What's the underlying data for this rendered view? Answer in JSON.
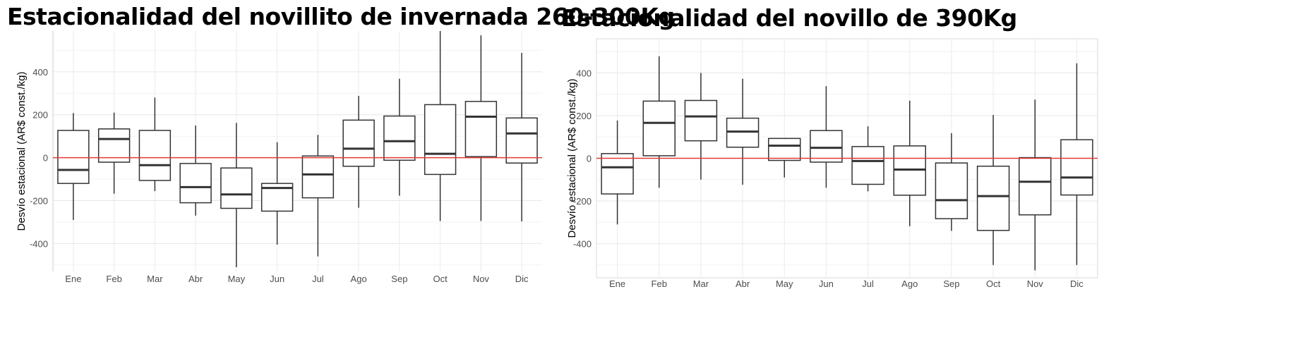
{
  "chart_data": [
    {
      "type": "boxplot",
      "title": "Estacionalidad del novillito de invernada 260-300Kg",
      "xlabel": "",
      "ylabel": "Desvío estacional (AR$ const./kg)",
      "ylim": [
        -530,
        590
      ],
      "yticks": [
        -400,
        -200,
        0,
        200,
        400
      ],
      "reference_line": {
        "y": 0,
        "color": "#e53935"
      },
      "categories": [
        "Ene",
        "Feb",
        "Mar",
        "Abr",
        "May",
        "Jun",
        "Jul",
        "Ago",
        "Sep",
        "Oct",
        "Nov",
        "Dic"
      ],
      "boxes": [
        {
          "min": -290,
          "q1": -120,
          "median": -57,
          "q3": 127,
          "max": 208
        },
        {
          "min": -168,
          "q1": -21,
          "median": 87,
          "q3": 134,
          "max": 210
        },
        {
          "min": -156,
          "q1": -106,
          "median": -35,
          "q3": 127,
          "max": 280
        },
        {
          "min": -270,
          "q1": -210,
          "median": -137,
          "q3": -27,
          "max": 150
        },
        {
          "min": -510,
          "q1": -236,
          "median": -171,
          "q3": -48,
          "max": 162
        },
        {
          "min": -405,
          "q1": -249,
          "median": -141,
          "q3": -120,
          "max": 72
        },
        {
          "min": -460,
          "q1": -187,
          "median": -78,
          "q3": 8,
          "max": 106
        },
        {
          "min": -233,
          "q1": -40,
          "median": 42,
          "q3": 175,
          "max": 288
        },
        {
          "min": -177,
          "q1": -12,
          "median": 77,
          "q3": 194,
          "max": 368
        },
        {
          "min": -295,
          "q1": -78,
          "median": 18,
          "q3": 247,
          "max": 590
        },
        {
          "min": -295,
          "q1": 5,
          "median": 191,
          "q3": 262,
          "max": 570
        },
        {
          "min": -297,
          "q1": -25,
          "median": 113,
          "q3": 185,
          "max": 488
        }
      ]
    },
    {
      "type": "boxplot",
      "title": "Estacionalidad del novillo de 390Kg",
      "xlabel": "",
      "ylabel": "Desvío estacional (AR$ const./kg)",
      "ylim": [
        -560,
        560
      ],
      "yticks": [
        -400,
        -200,
        0,
        200,
        400
      ],
      "reference_line": {
        "y": 0,
        "color": "#e53935"
      },
      "categories": [
        "Ene",
        "Feb",
        "Mar",
        "Abr",
        "May",
        "Jun",
        "Jul",
        "Ago",
        "Sep",
        "Oct",
        "Nov",
        "Dic"
      ],
      "boxes": [
        {
          "min": -310,
          "q1": -167,
          "median": -42,
          "q3": 22,
          "max": 177
        },
        {
          "min": -138,
          "q1": 12,
          "median": 166,
          "q3": 268,
          "max": 478
        },
        {
          "min": -100,
          "q1": 82,
          "median": 196,
          "q3": 271,
          "max": 400
        },
        {
          "min": -124,
          "q1": 52,
          "median": 125,
          "q3": 188,
          "max": 373
        },
        {
          "min": -90,
          "q1": -10,
          "median": 59,
          "q3": 93,
          "max": 95
        },
        {
          "min": -138,
          "q1": -18,
          "median": 49,
          "q3": 130,
          "max": 338
        },
        {
          "min": -155,
          "q1": -122,
          "median": -13,
          "q3": 55,
          "max": 150
        },
        {
          "min": -318,
          "q1": -173,
          "median": -53,
          "q3": 58,
          "max": 270
        },
        {
          "min": -340,
          "q1": -283,
          "median": -196,
          "q3": -22,
          "max": 118
        },
        {
          "min": -500,
          "q1": -338,
          "median": -177,
          "q3": -37,
          "max": 203
        },
        {
          "min": -525,
          "q1": -265,
          "median": -110,
          "q3": 3,
          "max": 275
        },
        {
          "min": -500,
          "q1": -172,
          "median": -90,
          "q3": 87,
          "max": 445
        }
      ]
    }
  ]
}
